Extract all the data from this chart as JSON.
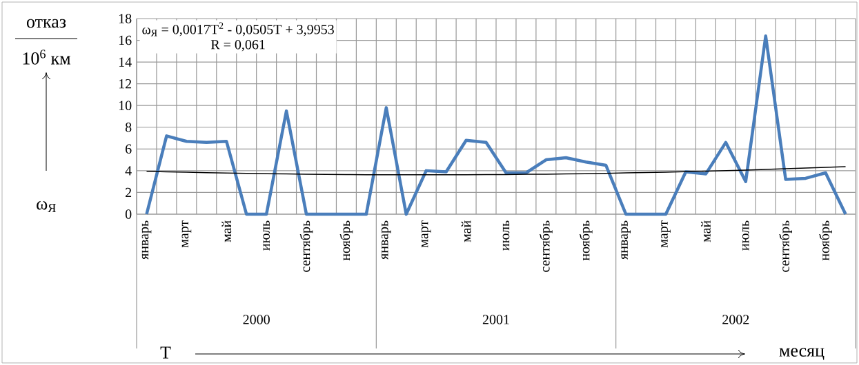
{
  "chart_data": {
    "type": "line",
    "ylabel": "ω$_{Я}$",
    "xlabel": "месяц",
    "categories": [
      "январь",
      null,
      "март",
      null,
      "май",
      null,
      "июль",
      null,
      "сентябрь",
      null,
      "ноябрь",
      null,
      "январь",
      null,
      "март",
      null,
      "май",
      null,
      "июль",
      null,
      "сентябрь",
      null,
      "ноябрь",
      null,
      "январь",
      null,
      "март",
      null,
      "май",
      null,
      "июль",
      null,
      "сентябрь",
      null,
      "ноябрь",
      null
    ],
    "series": [
      {
        "color": "#4a7ebb",
        "values": [
          0,
          7.2,
          6.7,
          6.6,
          6.7,
          0,
          0,
          9.5,
          0,
          0,
          0,
          0,
          9.8,
          0,
          4.0,
          3.9,
          6.8,
          6.6,
          3.8,
          3.8,
          5.0,
          5.2,
          4.8,
          4.5,
          0,
          0,
          0,
          3.9,
          3.7,
          6.6,
          3.0,
          16.4,
          3.2,
          3.3,
          3.8,
          0
        ]
      },
      {
        "color": "#000000",
        "values": [
          3.95,
          3.9,
          3.86,
          3.82,
          3.79,
          3.75,
          3.73,
          3.7,
          3.68,
          3.66,
          3.65,
          3.63,
          3.63,
          3.62,
          3.62,
          3.62,
          3.63,
          3.64,
          3.65,
          3.67,
          3.68,
          3.71,
          3.73,
          3.76,
          3.8,
          3.83,
          3.87,
          3.91,
          3.96,
          4.01,
          4.06,
          4.12,
          4.18,
          4.24,
          4.31,
          4.38
        ]
      }
    ],
    "ylim": [
      0,
      18
    ],
    "yticks": [
      0,
      2,
      4,
      6,
      8,
      10,
      12,
      14,
      16,
      18
    ],
    "grid": true,
    "marker": "none",
    "line_style": "solid",
    "annotations": [
      "отказ",
      "10$^{6}$ км",
      "T",
      "ω$_{Я}$ = 0,0017T$^{2}$ - 0,0505T + 3,9953",
      "R = 0,061",
      "2000",
      "2001",
      "2002"
    ]
  }
}
